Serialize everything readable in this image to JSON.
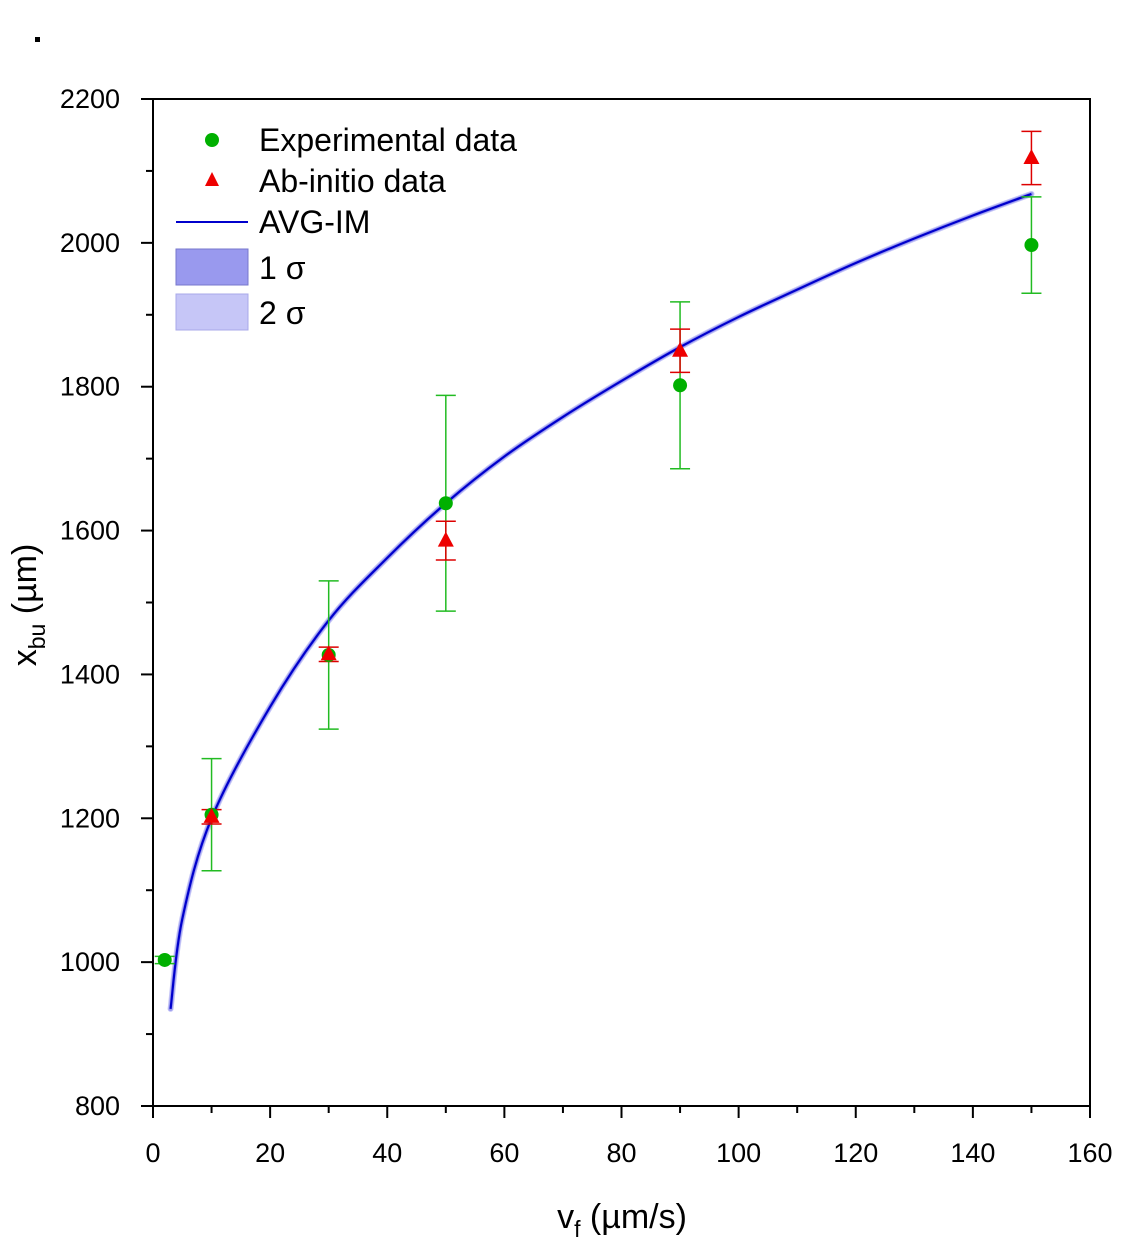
{
  "chart_data": {
    "type": "scatter",
    "xlabel": "v",
    "xlabel_sub": "f",
    "xlabel_unit": " (µm/s)",
    "ylabel": "x",
    "ylabel_sub": "bu",
    "ylabel_unit": " (µm)",
    "xlim": [
      0,
      160
    ],
    "ylim": [
      800,
      2200
    ],
    "x_ticks": [
      0,
      20,
      40,
      60,
      80,
      100,
      120,
      140,
      160
    ],
    "y_ticks": [
      800,
      1000,
      1200,
      1400,
      1600,
      1800,
      2000,
      2200
    ],
    "legend_position": "top-left",
    "series": [
      {
        "name": "Experimental data",
        "marker": "circle",
        "color": "#00b000",
        "error_color": "#22bb22",
        "points": [
          {
            "x": 2,
            "y": 1003,
            "err": 5
          },
          {
            "x": 10,
            "y": 1205,
            "err": 78
          },
          {
            "x": 30,
            "y": 1427,
            "err": 103
          },
          {
            "x": 50,
            "y": 1638,
            "err": 150
          },
          {
            "x": 90,
            "y": 1802,
            "err": 116
          },
          {
            "x": 150,
            "y": 1997,
            "err": 67
          }
        ]
      },
      {
        "name": "Ab-initio data",
        "marker": "triangle",
        "color": "#ee0000",
        "error_color": "#dd0000",
        "points": [
          {
            "x": 10,
            "y": 1202,
            "err": 10
          },
          {
            "x": 30,
            "y": 1428,
            "err": 10
          },
          {
            "x": 50,
            "y": 1586,
            "err": 27
          },
          {
            "x": 90,
            "y": 1850,
            "err": 30
          },
          {
            "x": 150,
            "y": 2118,
            "err": 37
          }
        ]
      },
      {
        "name": "AVG-IM",
        "type": "line",
        "color": "#0000cc",
        "points": [
          {
            "x": 3,
            "y": 935
          },
          {
            "x": 5,
            "y": 1060
          },
          {
            "x": 10,
            "y": 1200
          },
          {
            "x": 20,
            "y": 1355
          },
          {
            "x": 30,
            "y": 1475
          },
          {
            "x": 40,
            "y": 1562
          },
          {
            "x": 50,
            "y": 1638
          },
          {
            "x": 60,
            "y": 1703
          },
          {
            "x": 70,
            "y": 1758
          },
          {
            "x": 80,
            "y": 1808
          },
          {
            "x": 90,
            "y": 1855
          },
          {
            "x": 100,
            "y": 1897
          },
          {
            "x": 110,
            "y": 1935
          },
          {
            "x": 120,
            "y": 1972
          },
          {
            "x": 130,
            "y": 2006
          },
          {
            "x": 140,
            "y": 2038
          },
          {
            "x": 150,
            "y": 2068
          }
        ]
      }
    ],
    "bands": [
      {
        "name": "1 σ",
        "color": "#9999ee"
      },
      {
        "name": "2 σ",
        "color": "#c6c6f7"
      }
    ]
  }
}
